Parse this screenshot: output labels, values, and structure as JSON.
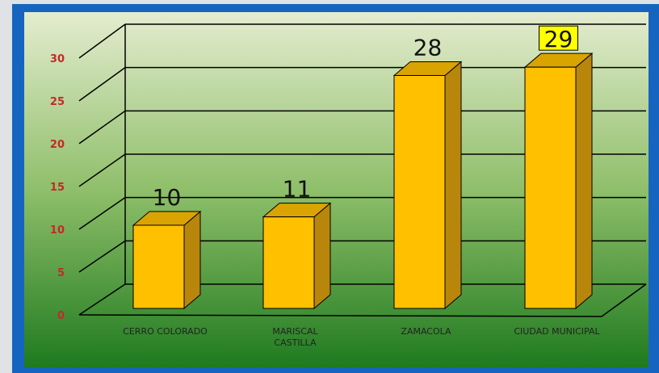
{
  "chart_data": {
    "type": "bar",
    "categories": [
      "CERRO COLORADO",
      "MARISCAL CASTILLA",
      "ZAMACOLA",
      "CIUDAD MUNICIPAL"
    ],
    "values": [
      10,
      11,
      28,
      29
    ],
    "color": "#ffc000",
    "ylim": [
      0,
      30
    ],
    "yticks": [
      0,
      5,
      10,
      15,
      20,
      25,
      30
    ],
    "grid": true
  }
}
